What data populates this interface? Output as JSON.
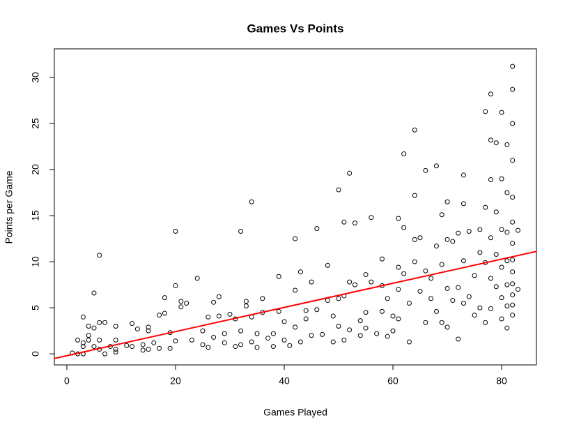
{
  "chart_data": {
    "type": "scatter",
    "title": "Games Vs Points",
    "x_label": "Games Played",
    "y_label": "Points per Game",
    "xlim": [
      -2.3,
      86.4
    ],
    "ylim": [
      -1.2,
      33.1
    ],
    "xticks": [
      0,
      20,
      40,
      60,
      80
    ],
    "yticks": [
      0,
      5,
      10,
      15,
      20,
      25,
      30
    ],
    "color": "#000000",
    "trend_line": {
      "color": "#ff0000",
      "intercept": -0.2,
      "slope": 0.131
    },
    "x": [
      1,
      2,
      2,
      3,
      3,
      3,
      3,
      4,
      4,
      4,
      5,
      5,
      5,
      6,
      6,
      6,
      6,
      7,
      7,
      8,
      9,
      9,
      9,
      9,
      11,
      12,
      12,
      13,
      14,
      14,
      15,
      15,
      15,
      16,
      17,
      17,
      18,
      18,
      19,
      19,
      20,
      20,
      20,
      21,
      21,
      22,
      23,
      24,
      25,
      25,
      26,
      26,
      27,
      27,
      28,
      28,
      29,
      29,
      30,
      31,
      31,
      32,
      32,
      32,
      33,
      33,
      34,
      34,
      34,
      35,
      35,
      36,
      36,
      37,
      38,
      38,
      39,
      39,
      40,
      40,
      41,
      42,
      42,
      42,
      43,
      43,
      44,
      44,
      45,
      45,
      46,
      46,
      47,
      48,
      48,
      49,
      49,
      50,
      50,
      50,
      51,
      51,
      51,
      52,
      52,
      52,
      53,
      53,
      54,
      54,
      55,
      55,
      55,
      56,
      56,
      57,
      58,
      58,
      58,
      59,
      59,
      60,
      60,
      61,
      61,
      61,
      61,
      62,
      62,
      62,
      63,
      63,
      64,
      64,
      64,
      64,
      65,
      65,
      66,
      66,
      66,
      67,
      67,
      68,
      68,
      68,
      69,
      69,
      69,
      70,
      70,
      70,
      70,
      71,
      71,
      72,
      72,
      72,
      73,
      73,
      73,
      73,
      74,
      74,
      75,
      75,
      76,
      76,
      76,
      77,
      77,
      77,
      77,
      78,
      78,
      78,
      78,
      78,
      78,
      79,
      79,
      79,
      79,
      80,
      80,
      80,
      80,
      80,
      80,
      81,
      81,
      81,
      81,
      81,
      81,
      81,
      82,
      82,
      82,
      82,
      82,
      82,
      82,
      82,
      82,
      82,
      82,
      82,
      82,
      83,
      83
    ],
    "values": [
      0.1,
      1.5,
      0,
      0.8,
      1.2,
      4,
      0,
      1.5,
      2,
      3,
      6.6,
      2.8,
      0.8,
      10.7,
      3.4,
      1.5,
      0.5,
      3.4,
      0,
      0.8,
      3,
      1.5,
      0.5,
      0.2,
      0.9,
      3.3,
      0.8,
      2.7,
      1,
      0.4,
      2.9,
      2.5,
      0.5,
      1.2,
      4.2,
      0.6,
      6.1,
      4.4,
      2.3,
      0.6,
      13.3,
      7.4,
      1.4,
      5.7,
      5.1,
      5.5,
      1.5,
      8.2,
      2.5,
      1,
      0.7,
      4,
      5.6,
      1.8,
      6.2,
      4.1,
      2.2,
      1.2,
      4.3,
      0.8,
      3.8,
      13.3,
      2.5,
      1,
      5.7,
      5.2,
      16.5,
      1.3,
      4,
      2.2,
      0.7,
      6,
      4.5,
      1.7,
      2.2,
      0.8,
      8.4,
      4.6,
      3.5,
      1.5,
      0.9,
      12.5,
      6.9,
      2.9,
      8.9,
      1.3,
      4.7,
      3.8,
      7.8,
      2,
      13.6,
      4.8,
      2.1,
      9.6,
      5.8,
      4.1,
      1.3,
      17.8,
      6,
      3,
      14.3,
      6.3,
      1.5,
      19.6,
      7.8,
      2.6,
      14.2,
      7.5,
      3.6,
      2,
      8.6,
      4.5,
      2.8,
      14.8,
      7.8,
      2.2,
      10.3,
      7.4,
      4.6,
      6,
      1.9,
      4.1,
      2.5,
      14.7,
      9.4,
      7,
      3.8,
      21.7,
      13.7,
      8.7,
      5.5,
      1.3,
      24.3,
      17.2,
      12.4,
      10,
      12.6,
      6.8,
      19.9,
      9,
      3.4,
      8.2,
      6,
      20.4,
      11.7,
      4.6,
      15.1,
      9.7,
      3.4,
      16.5,
      12.4,
      7.1,
      2.9,
      12.2,
      5.8,
      13.1,
      7.2,
      1.6,
      19.4,
      16.3,
      10.1,
      5.5,
      13.3,
      6.2,
      8.5,
      4.2,
      13.5,
      11,
      5,
      26.3,
      15.9,
      9.9,
      3.4,
      28.2,
      23.2,
      18.9,
      12.6,
      8.2,
      4.9,
      22.9,
      15.4,
      10.8,
      7.3,
      26.2,
      19,
      13.5,
      9.4,
      6.1,
      3.8,
      22.7,
      17.5,
      13.2,
      10.1,
      7.5,
      5.2,
      2.8,
      31.2,
      28.7,
      25,
      21,
      17,
      14.3,
      12,
      10.2,
      8.9,
      7.6,
      6.4,
      5.3,
      4.2,
      13.4,
      7
    ]
  }
}
